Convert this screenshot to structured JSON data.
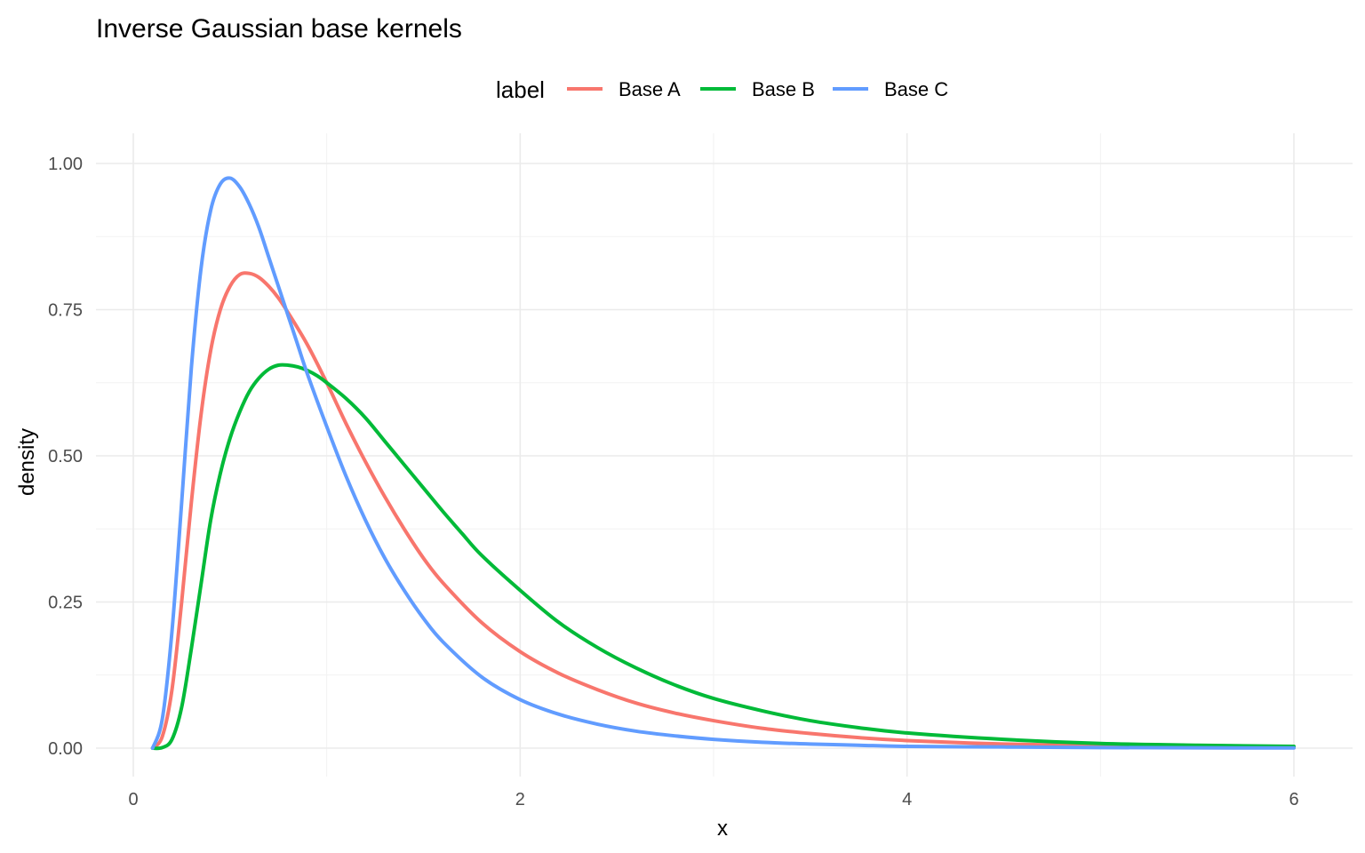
{
  "chart_data": {
    "type": "line",
    "title": "Inverse Gaussian base kernels",
    "xlabel": "x",
    "ylabel": "density",
    "xlim": [
      0,
      6
    ],
    "ylim": [
      0,
      1
    ],
    "x_ticks": [
      0,
      2,
      4,
      6
    ],
    "x_tick_labels": [
      "0",
      "2",
      "4",
      "6"
    ],
    "y_ticks": [
      0,
      0.25,
      0.5,
      0.75,
      1.0
    ],
    "y_tick_labels": [
      "0.00",
      "0.25",
      "0.50",
      "0.75",
      "1.00"
    ],
    "grid": true,
    "legend": {
      "title": "label",
      "position": "top"
    },
    "series": [
      {
        "name": "Base A",
        "color": "#F8766D",
        "x": [
          0.1,
          0.15,
          0.2,
          0.25,
          0.3,
          0.35,
          0.4,
          0.45,
          0.5,
          0.55,
          0.6,
          0.65,
          0.7,
          0.75,
          0.8,
          0.9,
          1.0,
          1.1,
          1.2,
          1.3,
          1.4,
          1.5,
          1.6,
          1.8,
          2.0,
          2.2,
          2.4,
          2.6,
          2.8,
          3.0,
          3.25,
          3.5,
          3.75,
          4.0,
          4.5,
          5.0,
          5.5,
          6.0
        ],
        "y": [
          0.0,
          0.02,
          0.1,
          0.25,
          0.42,
          0.57,
          0.68,
          0.75,
          0.79,
          0.81,
          0.812,
          0.805,
          0.79,
          0.77,
          0.745,
          0.69,
          0.625,
          0.555,
          0.49,
          0.43,
          0.375,
          0.325,
          0.283,
          0.215,
          0.165,
          0.128,
          0.1,
          0.077,
          0.06,
          0.047,
          0.034,
          0.025,
          0.018,
          0.013,
          0.007,
          0.004,
          0.002,
          0.001
        ]
      },
      {
        "name": "Base B",
        "color": "#00BA38",
        "x": [
          0.1,
          0.15,
          0.2,
          0.25,
          0.3,
          0.35,
          0.4,
          0.45,
          0.5,
          0.55,
          0.6,
          0.65,
          0.7,
          0.75,
          0.8,
          0.85,
          0.9,
          0.95,
          1.0,
          1.1,
          1.2,
          1.3,
          1.4,
          1.5,
          1.6,
          1.7,
          1.8,
          2.0,
          2.2,
          2.4,
          2.6,
          2.8,
          3.0,
          3.25,
          3.5,
          3.75,
          4.0,
          4.5,
          5.0,
          5.5,
          6.0
        ],
        "y": [
          0.0,
          0.001,
          0.015,
          0.07,
          0.17,
          0.28,
          0.39,
          0.47,
          0.53,
          0.575,
          0.61,
          0.633,
          0.648,
          0.655,
          0.655,
          0.652,
          0.646,
          0.637,
          0.625,
          0.598,
          0.565,
          0.525,
          0.485,
          0.445,
          0.405,
          0.367,
          0.33,
          0.27,
          0.215,
          0.172,
          0.137,
          0.108,
          0.085,
          0.064,
          0.047,
          0.035,
          0.026,
          0.015,
          0.008,
          0.005,
          0.003
        ]
      },
      {
        "name": "Base C",
        "color": "#619CFF",
        "x": [
          0.1,
          0.15,
          0.2,
          0.25,
          0.3,
          0.35,
          0.4,
          0.45,
          0.5,
          0.55,
          0.6,
          0.65,
          0.7,
          0.75,
          0.8,
          0.85,
          0.9,
          1.0,
          1.1,
          1.2,
          1.3,
          1.4,
          1.5,
          1.6,
          1.8,
          2.0,
          2.2,
          2.4,
          2.6,
          2.8,
          3.0,
          3.25,
          3.5,
          3.75,
          4.0,
          4.5,
          5.0,
          5.5,
          6.0
        ],
        "y": [
          0.0,
          0.05,
          0.2,
          0.42,
          0.65,
          0.82,
          0.92,
          0.965,
          0.975,
          0.96,
          0.93,
          0.89,
          0.84,
          0.79,
          0.74,
          0.69,
          0.64,
          0.55,
          0.465,
          0.39,
          0.325,
          0.27,
          0.222,
          0.182,
          0.122,
          0.083,
          0.058,
          0.041,
          0.029,
          0.021,
          0.015,
          0.01,
          0.007,
          0.005,
          0.003,
          0.002,
          0.001,
          0.0005,
          0.0003
        ]
      }
    ]
  }
}
